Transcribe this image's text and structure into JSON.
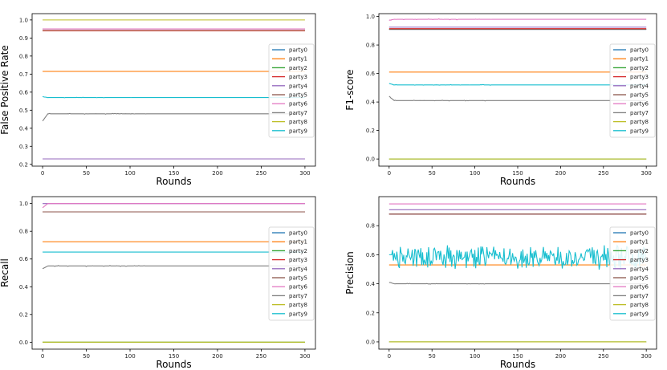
{
  "colors": {
    "party0": "#1f77b4",
    "party1": "#ff7f0e",
    "party2": "#2ca02c",
    "party3": "#d62728",
    "party4": "#9467bd",
    "party5": "#8c564b",
    "party6": "#e377c2",
    "party7": "#7f7f7f",
    "party8": "#bcbd22",
    "party9": "#17becf"
  },
  "chart_data": [
    {
      "type": "line",
      "xlabel": "Rounds",
      "ylabel": "False Positive Rate",
      "xlim": [
        -12,
        312
      ],
      "ylim": [
        0.19,
        1.035
      ],
      "xticks": [
        0,
        50,
        100,
        150,
        200,
        250,
        300
      ],
      "yticks": [
        0.2,
        0.3,
        0.4,
        0.5,
        0.6,
        0.7,
        0.8,
        0.9,
        1.0
      ],
      "ytick_labels": [
        "0.2",
        "0.3",
        "0.4",
        "0.5",
        "0.6",
        "0.7",
        "0.8",
        "0.9",
        "1.0"
      ],
      "legend": "right",
      "series": [
        {
          "name": "party0",
          "y0": 0.94,
          "final": 0.94,
          "noise": 0,
          "seed": 1
        },
        {
          "name": "party1",
          "y0": 0.715,
          "final": 0.715,
          "noise": 0,
          "seed": 2
        },
        {
          "name": "party2",
          "y0": 0.94,
          "final": 0.94,
          "noise": 0,
          "seed": 3
        },
        {
          "name": "party3",
          "y0": 0.94,
          "final": 0.94,
          "noise": 0,
          "seed": 4
        },
        {
          "name": "party4",
          "y0": 0.23,
          "final": 0.23,
          "noise": 0,
          "seed": 5
        },
        {
          "name": "party5",
          "y0": 0.95,
          "final": 0.95,
          "noise": 0,
          "seed": 6
        },
        {
          "name": "party6",
          "y0": 0.95,
          "final": 0.95,
          "noise": 0,
          "seed": 7
        },
        {
          "name": "party7",
          "y0": 0.44,
          "final": 0.48,
          "noise": 0.003,
          "seed": 8
        },
        {
          "name": "party8",
          "y0": 1.0,
          "final": 1.0,
          "noise": 0,
          "seed": 9
        },
        {
          "name": "party9",
          "y0": 0.575,
          "final": 0.57,
          "noise": 0.002,
          "seed": 10
        }
      ]
    },
    {
      "type": "line",
      "xlabel": "Rounds",
      "ylabel": "F1-score",
      "xlim": [
        -12,
        312
      ],
      "ylim": [
        -0.05,
        1.02
      ],
      "xticks": [
        0,
        50,
        100,
        150,
        200,
        250,
        300
      ],
      "yticks": [
        0.0,
        0.2,
        0.4,
        0.6,
        0.8,
        1.0
      ],
      "ytick_labels": [
        "0.0",
        "0.2",
        "0.4",
        "0.6",
        "0.8",
        "1.0"
      ],
      "legend": "right",
      "series": [
        {
          "name": "party0",
          "y0": 0.91,
          "final": 0.91,
          "noise": 0,
          "seed": 11
        },
        {
          "name": "party1",
          "y0": 0.61,
          "final": 0.61,
          "noise": 0,
          "seed": 12
        },
        {
          "name": "party2",
          "y0": 0.0,
          "final": 0.0,
          "noise": 0,
          "seed": 13
        },
        {
          "name": "party3",
          "y0": 0.915,
          "final": 0.915,
          "noise": 0,
          "seed": 14
        },
        {
          "name": "party4",
          "y0": 0.925,
          "final": 0.925,
          "noise": 0,
          "seed": 15
        },
        {
          "name": "party5",
          "y0": 0.91,
          "final": 0.91,
          "noise": 0,
          "seed": 16
        },
        {
          "name": "party6",
          "y0": 0.975,
          "final": 0.98,
          "noise": 0.004,
          "seed": 17
        },
        {
          "name": "party7",
          "y0": 0.44,
          "final": 0.41,
          "noise": 0.003,
          "seed": 18
        },
        {
          "name": "party8",
          "y0": 0.0,
          "final": 0.0,
          "noise": 0,
          "seed": 19
        },
        {
          "name": "party9",
          "y0": 0.53,
          "final": 0.52,
          "noise": 0.002,
          "seed": 20
        }
      ]
    },
    {
      "type": "line",
      "xlabel": "Rounds",
      "ylabel": "Recall",
      "xlim": [
        -12,
        312
      ],
      "ylim": [
        -0.05,
        1.05
      ],
      "xticks": [
        0,
        50,
        100,
        150,
        200,
        250,
        300
      ],
      "yticks": [
        0.0,
        0.2,
        0.4,
        0.6,
        0.8,
        1.0
      ],
      "ytick_labels": [
        "0.0",
        "0.2",
        "0.4",
        "0.6",
        "0.8",
        "1.0"
      ],
      "legend": "right",
      "series": [
        {
          "name": "party0",
          "y0": 0.94,
          "final": 0.94,
          "noise": 0,
          "seed": 21
        },
        {
          "name": "party1",
          "y0": 0.725,
          "final": 0.725,
          "noise": 0,
          "seed": 22
        },
        {
          "name": "party2",
          "y0": 0.0,
          "final": 0.0,
          "noise": 0,
          "seed": 23
        },
        {
          "name": "party3",
          "y0": 0.94,
          "final": 0.94,
          "noise": 0,
          "seed": 24
        },
        {
          "name": "party4",
          "y0": 1.0,
          "final": 1.0,
          "noise": 0,
          "seed": 25
        },
        {
          "name": "party5",
          "y0": 0.94,
          "final": 0.94,
          "noise": 0,
          "seed": 26
        },
        {
          "name": "party6",
          "y0": 0.97,
          "final": 1.0,
          "noise": 0,
          "seed": 27
        },
        {
          "name": "party7",
          "y0": 0.53,
          "final": 0.55,
          "noise": 0.004,
          "seed": 28
        },
        {
          "name": "party8",
          "y0": 0.0,
          "final": 0.0,
          "noise": 0,
          "seed": 29
        },
        {
          "name": "party9",
          "y0": 0.65,
          "final": 0.65,
          "noise": 0,
          "seed": 30
        }
      ]
    },
    {
      "type": "line",
      "xlabel": "Rounds",
      "ylabel": "Precision",
      "xlim": [
        -12,
        312
      ],
      "ylim": [
        -0.05,
        1.0
      ],
      "xticks": [
        0,
        50,
        100,
        150,
        200,
        250,
        300
      ],
      "yticks": [
        0.0,
        0.2,
        0.4,
        0.6,
        0.8
      ],
      "ytick_labels": [
        "0.0",
        "0.2",
        "0.4",
        "0.6",
        "0.8"
      ],
      "legend": "right",
      "series": [
        {
          "name": "party0",
          "y0": 0.88,
          "final": 0.88,
          "noise": 0,
          "seed": 31
        },
        {
          "name": "party1",
          "y0": 0.53,
          "final": 0.53,
          "noise": 0,
          "seed": 32
        },
        {
          "name": "party2",
          "y0": 0.0,
          "final": 0.0,
          "noise": 0,
          "seed": 33
        },
        {
          "name": "party3",
          "y0": 0.88,
          "final": 0.88,
          "noise": 0,
          "seed": 34
        },
        {
          "name": "party4",
          "y0": 0.91,
          "final": 0.91,
          "noise": 0,
          "seed": 35
        },
        {
          "name": "party5",
          "y0": 0.88,
          "final": 0.88,
          "noise": 0,
          "seed": 36
        },
        {
          "name": "party6",
          "y0": 0.95,
          "final": 0.95,
          "noise": 0,
          "seed": 37
        },
        {
          "name": "party7",
          "y0": 0.41,
          "final": 0.4,
          "noise": 0.003,
          "seed": 38
        },
        {
          "name": "party8",
          "y0": 0.0,
          "final": 0.0,
          "noise": 0,
          "seed": 39
        },
        {
          "name": "party9",
          "y0": 0.6,
          "final": 0.6,
          "noise": 0.07,
          "seed": 40,
          "oscillate": true
        }
      ]
    }
  ]
}
